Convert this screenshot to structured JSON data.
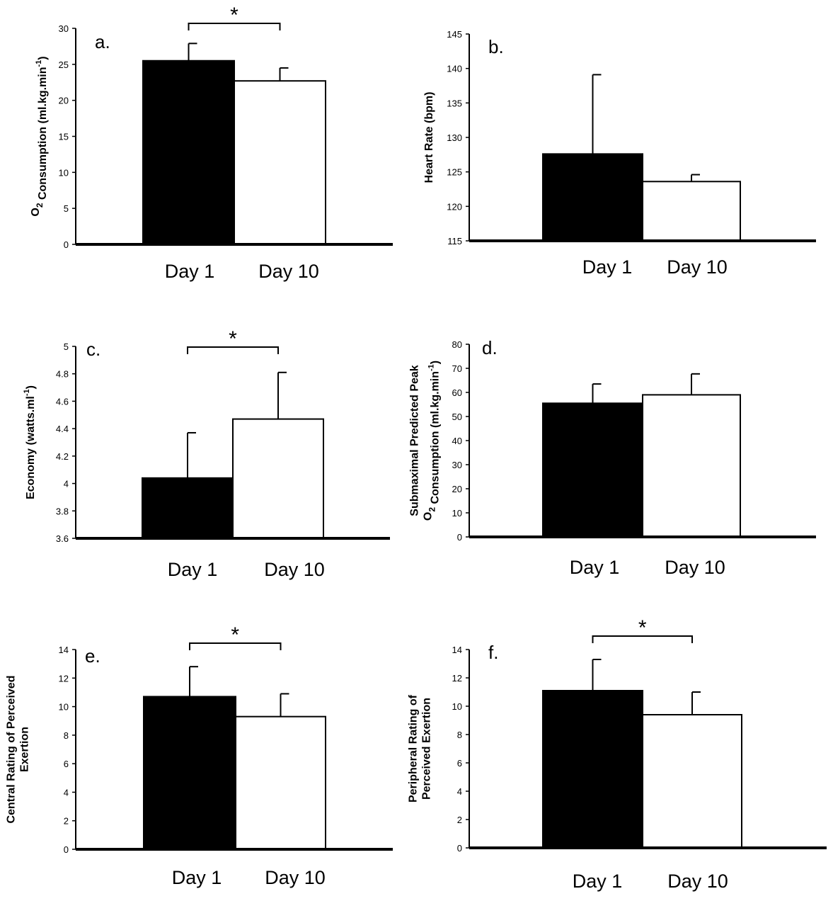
{
  "colors": {
    "day1_fill": "#000000",
    "day10_fill": "#ffffff",
    "stroke": "#000000"
  },
  "chart_data": [
    {
      "type": "bar",
      "panel_label": "a.",
      "ylabel_lines": [
        "O2 Consumption (ml.kg.min-1)"
      ],
      "categories": [
        "Day 1",
        "Day 10"
      ],
      "values": [
        25.5,
        22.7
      ],
      "errors": [
        2.4,
        1.8
      ],
      "ylim": [
        0,
        30
      ],
      "yticks": [
        0,
        5,
        10,
        15,
        20,
        25,
        30
      ],
      "significance": "*"
    },
    {
      "type": "bar",
      "panel_label": "b.",
      "ylabel_lines": [
        "Heart Rate (bpm)"
      ],
      "categories": [
        "Day 1",
        "Day 10"
      ],
      "values": [
        127.6,
        123.6
      ],
      "errors": [
        11.5,
        1.0
      ],
      "ylim": [
        115,
        145
      ],
      "yticks": [
        115,
        120,
        125,
        130,
        135,
        140,
        145
      ],
      "significance": ""
    },
    {
      "type": "bar",
      "panel_label": "c.",
      "ylabel_lines": [
        "Economy (watts.ml-1)"
      ],
      "categories": [
        "Day 1",
        "Day 10"
      ],
      "values": [
        4.04,
        4.47
      ],
      "errors": [
        0.33,
        0.34
      ],
      "ylim": [
        3.6,
        5
      ],
      "yticks": [
        "3.6",
        "3.8",
        "4",
        "4.2",
        "4.4",
        "4.6",
        "4.8",
        "5"
      ],
      "significance": "*"
    },
    {
      "type": "bar",
      "panel_label": "d.",
      "ylabel_lines": [
        "Submaximal Predicted Peak",
        "O2 Consumption (ml.kg.min-1)"
      ],
      "categories": [
        "Day 1",
        "Day 10"
      ],
      "values": [
        55.5,
        59.0
      ],
      "errors": [
        8.0,
        8.7
      ],
      "ylim": [
        0,
        80
      ],
      "yticks": [
        0,
        10,
        20,
        30,
        40,
        50,
        60,
        70,
        80
      ],
      "significance": ""
    },
    {
      "type": "bar",
      "panel_label": "e.",
      "ylabel_lines": [
        "Central Rating of Perceived",
        "Exertion"
      ],
      "categories": [
        "Day 1",
        "Day 10"
      ],
      "values": [
        10.7,
        9.3
      ],
      "errors": [
        2.1,
        1.6
      ],
      "ylim": [
        0,
        14
      ],
      "yticks": [
        0,
        2,
        4,
        6,
        8,
        10,
        12,
        14
      ],
      "significance": "*"
    },
    {
      "type": "bar",
      "panel_label": "f.",
      "ylabel_lines": [
        "Peripheral Rating of",
        "Perceived Exertion"
      ],
      "categories": [
        "Day 1",
        "Day 10"
      ],
      "values": [
        11.1,
        9.4
      ],
      "errors": [
        2.2,
        1.6
      ],
      "ylim": [
        0,
        14
      ],
      "yticks": [
        0,
        2,
        4,
        6,
        8,
        10,
        12,
        14
      ],
      "significance": "*"
    }
  ]
}
